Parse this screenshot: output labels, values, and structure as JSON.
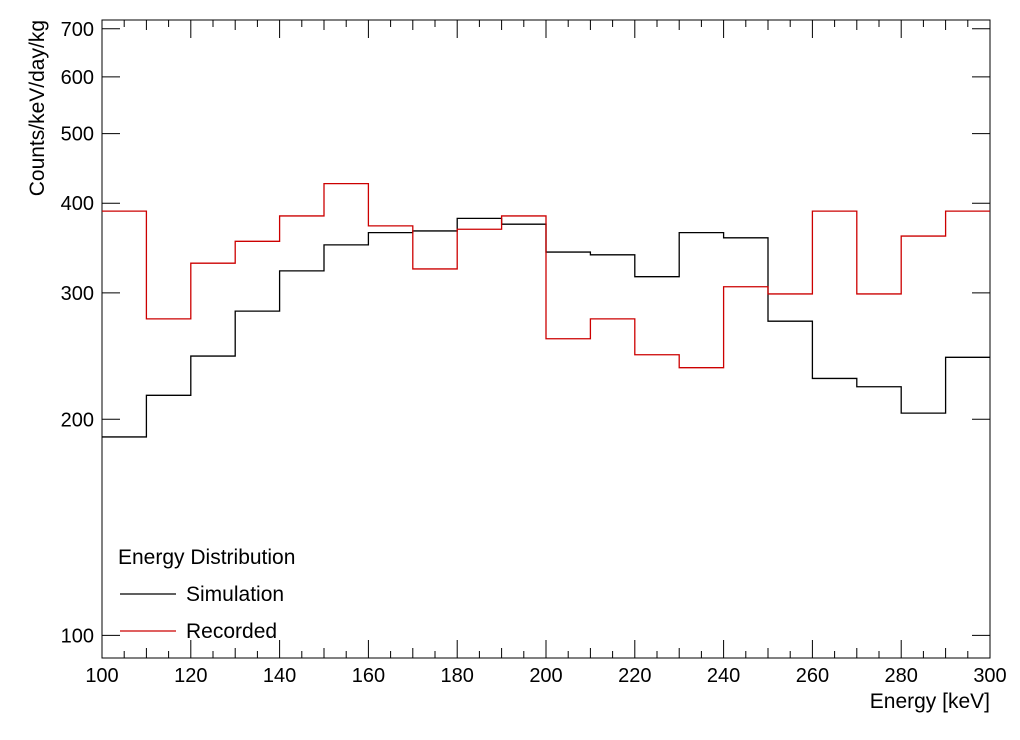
{
  "chart_data": {
    "type": "line",
    "subtype": "step-histogram",
    "xlabel": "Energy [keV]",
    "ylabel": "Counts/keV/day/kg",
    "xlim": [
      100,
      300
    ],
    "ylim": [
      93,
      720
    ],
    "yscale": "log",
    "grid": false,
    "x_ticks": [
      100,
      120,
      140,
      160,
      180,
      200,
      220,
      240,
      260,
      280,
      300
    ],
    "y_ticks": [
      100,
      200,
      300,
      400,
      500,
      600,
      700
    ],
    "bin_edges": [
      100,
      110,
      120,
      130,
      140,
      150,
      160,
      170,
      180,
      190,
      200,
      210,
      220,
      230,
      240,
      250,
      260,
      270,
      280,
      290,
      300
    ],
    "legend": {
      "title": "Energy Distribution",
      "placement": "bottom-left"
    },
    "series": [
      {
        "name": "Simulation",
        "color": "#000000",
        "values": [
          189,
          216,
          245,
          283,
          322,
          350,
          364,
          366,
          381,
          374,
          342,
          339,
          316,
          364,
          358,
          274,
          228,
          222,
          204,
          244
        ]
      },
      {
        "name": "Recorded",
        "color": "#cc0000",
        "values": [
          390,
          276,
          330,
          354,
          384,
          426,
          372,
          324,
          368,
          384,
          259,
          276,
          246,
          236,
          306,
          299,
          390,
          299,
          360,
          390
        ]
      }
    ]
  }
}
